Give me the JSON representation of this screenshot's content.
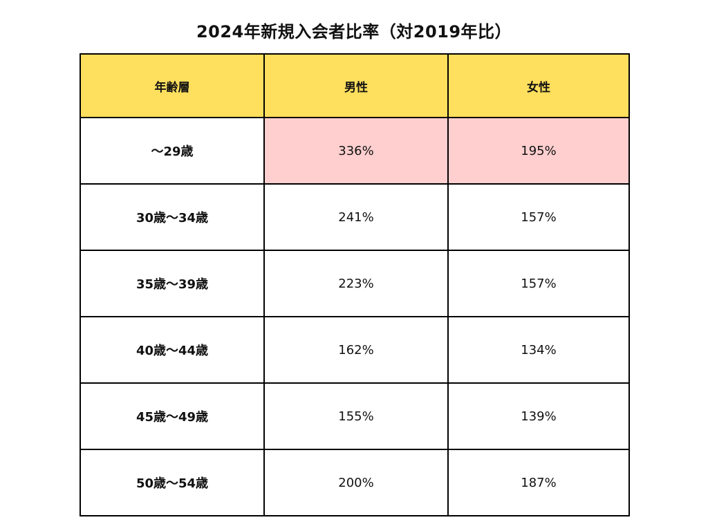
{
  "colors": {
    "header_bg": "#FFDF5E",
    "highlight_bg": "#FFCFCF",
    "border": "#000000",
    "cell_bg": "#FFFFFF"
  },
  "chart_data": {
    "type": "table",
    "title": "2024年新規入会者比率（対2019年比）",
    "columns": [
      "年齢層",
      "男性",
      "女性"
    ],
    "rows": [
      {
        "age": "〜29歳",
        "male": "336%",
        "female": "195%",
        "highlight": true
      },
      {
        "age": "30歳〜34歳",
        "male": "241%",
        "female": "157%",
        "highlight": false
      },
      {
        "age": "35歳〜39歳",
        "male": "223%",
        "female": "157%",
        "highlight": false
      },
      {
        "age": "40歳〜44歳",
        "male": "162%",
        "female": "134%",
        "highlight": false
      },
      {
        "age": "45歳〜49歳",
        "male": "155%",
        "female": "139%",
        "highlight": false
      },
      {
        "age": "50歳〜54歳",
        "male": "200%",
        "female": "187%",
        "highlight": false
      }
    ]
  }
}
